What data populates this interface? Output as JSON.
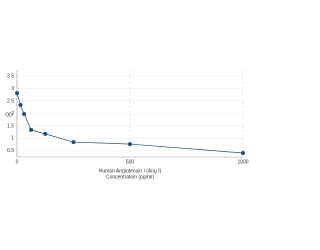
{
  "chart_data": {
    "type": "line",
    "x_label": "Human Angiotensin I (Ang I)",
    "x_label2": "Concentration (pg/ml)",
    "y_label": "OD",
    "x": [
      0,
      15.6,
      31.25,
      62.5,
      125,
      250,
      500,
      1000
    ],
    "series": [
      {
        "color": "#1f4e79",
        "values": [
          2.82,
          2.34,
          1.98,
          1.34,
          1.18,
          0.85,
          0.77,
          0.41
        ]
      }
    ],
    "xlim": [
      0,
      1000
    ],
    "xticks": [
      0,
      500,
      1000
    ],
    "ylim": [
      0.25,
      3.75
    ],
    "yticks": [
      0.5,
      1,
      1.5,
      2,
      2.5,
      3,
      3.5
    ],
    "grid": true
  }
}
